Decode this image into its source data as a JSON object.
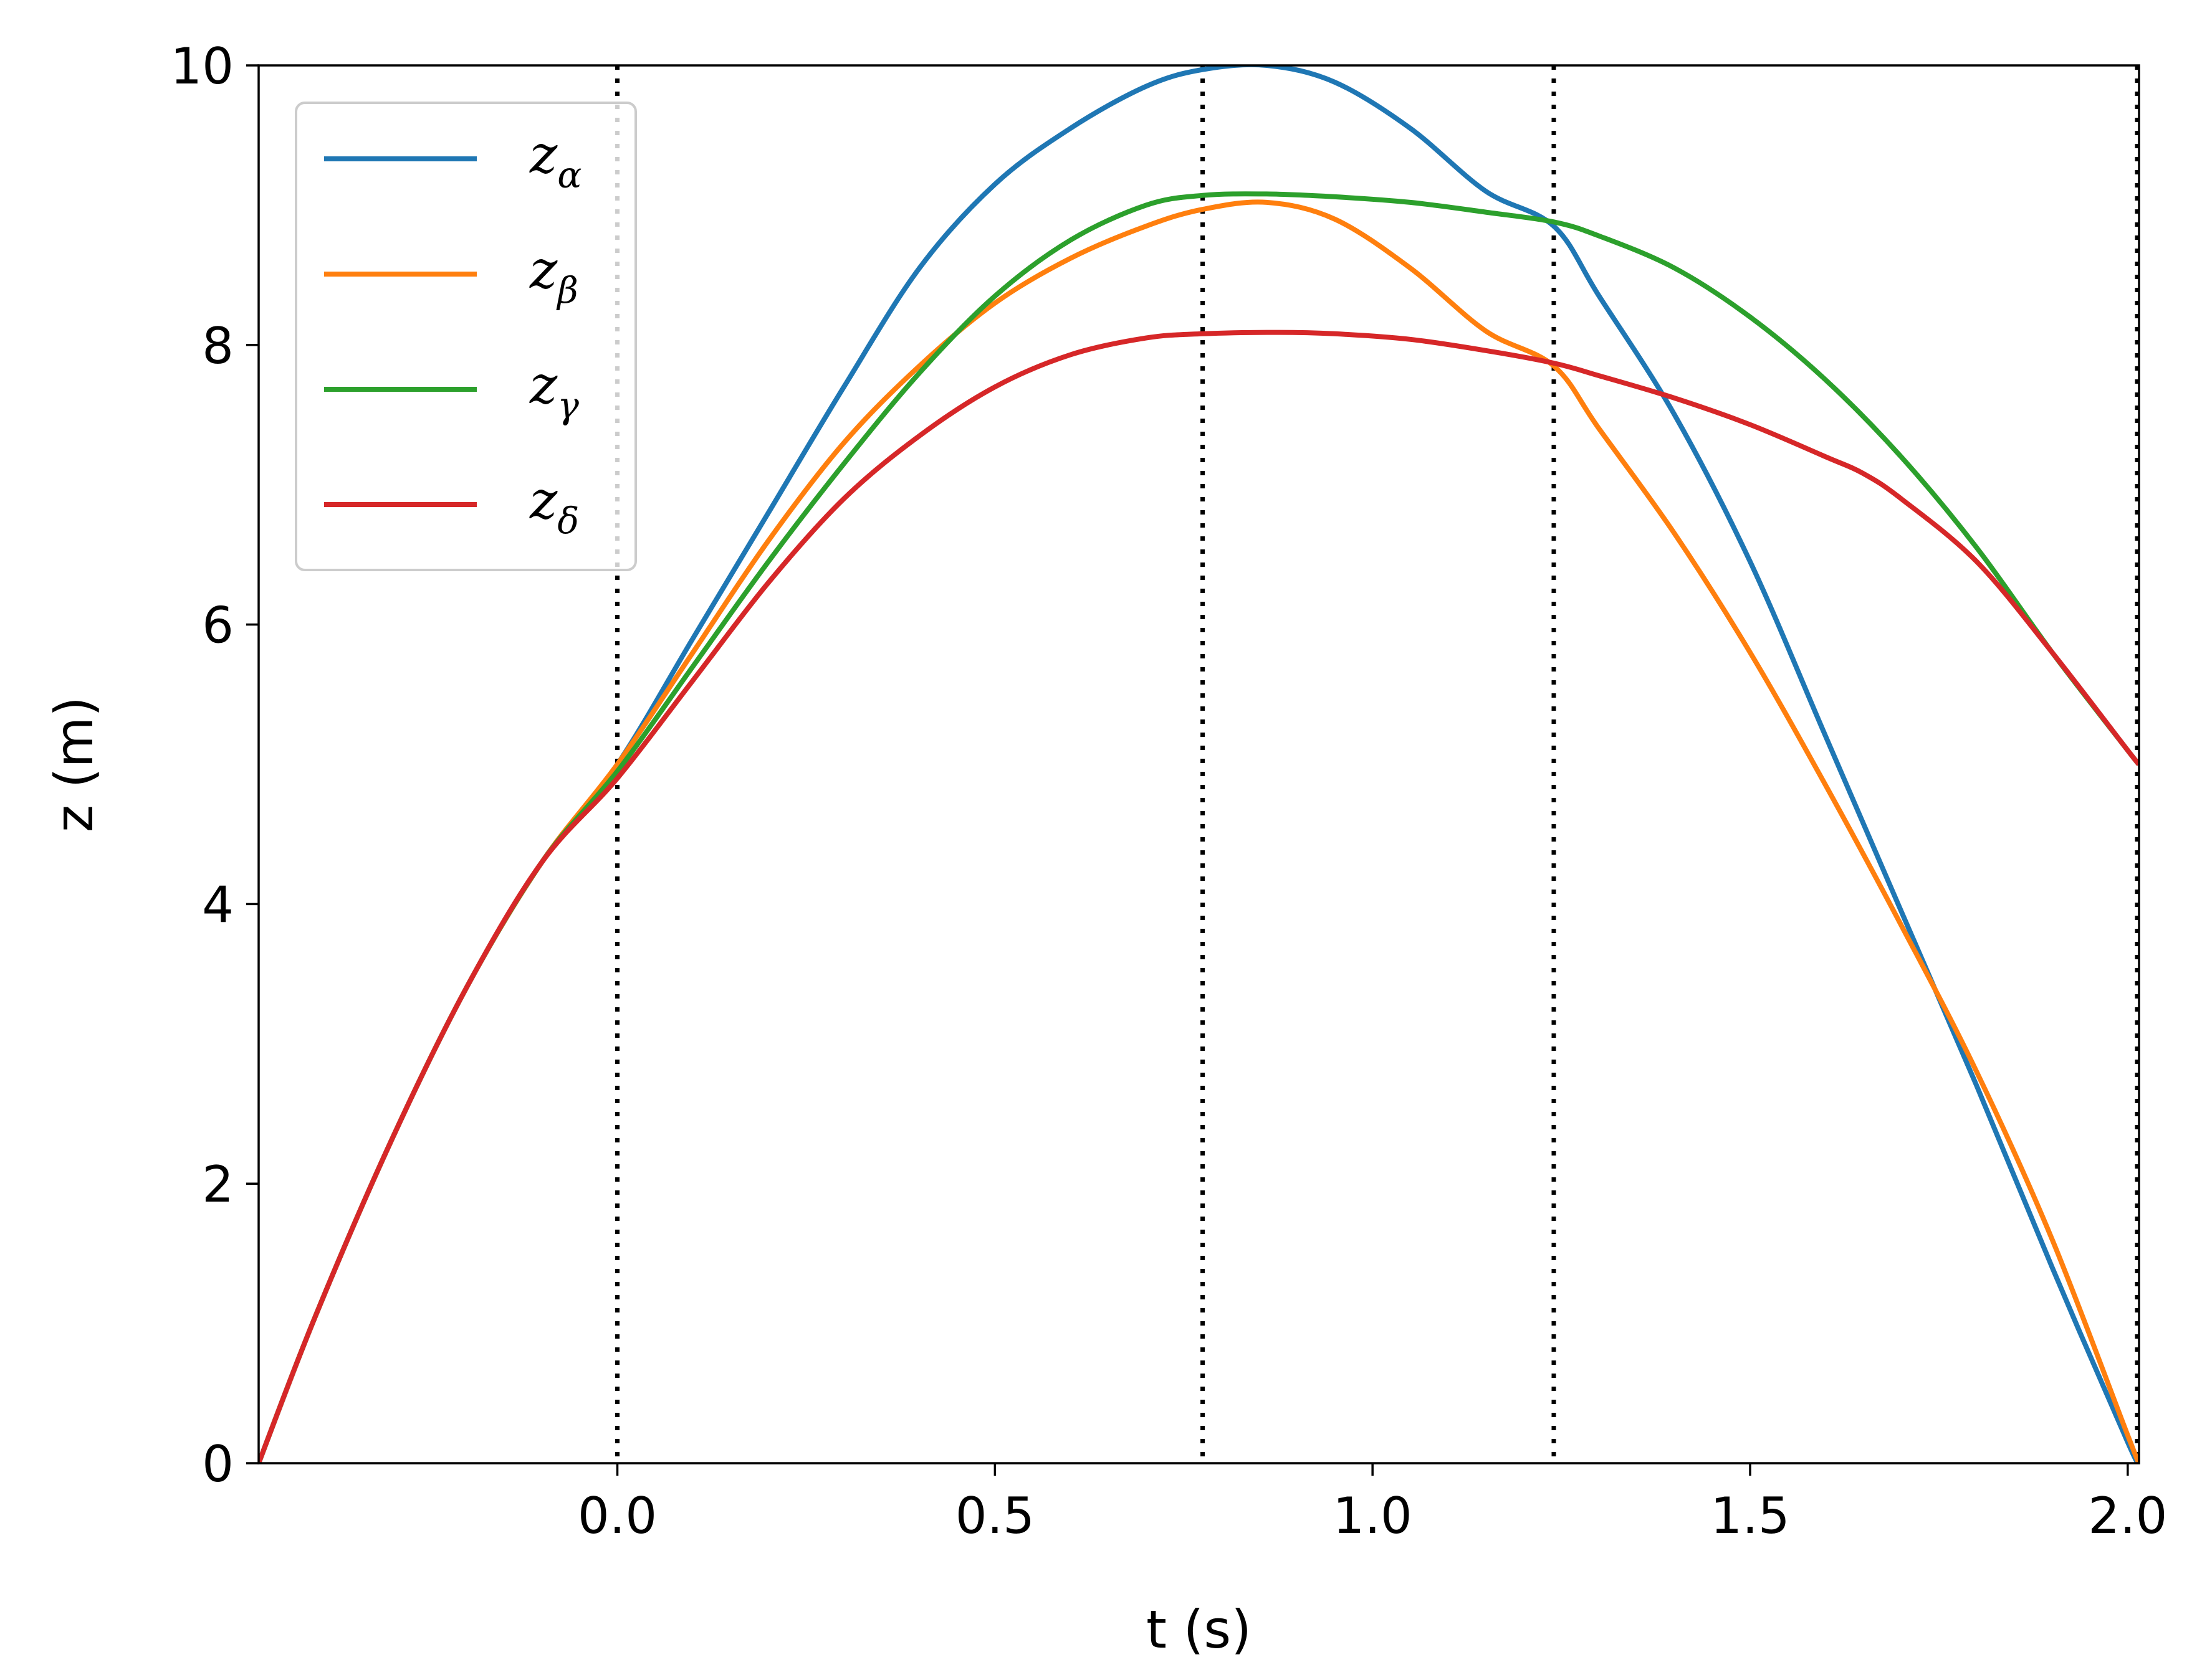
{
  "chart_data": {
    "type": "line",
    "xlabel": "t (s)",
    "ylabel": "z (m)",
    "xlim": [
      -0.475,
      2.015
    ],
    "ylim": [
      0,
      10
    ],
    "xticks": [
      0.0,
      0.5,
      1.0,
      1.5,
      2.0
    ],
    "xtick_labels": [
      "0.0",
      "0.5",
      "1.0",
      "1.5",
      "2.0"
    ],
    "yticks": [
      0,
      2,
      4,
      6,
      8,
      10
    ],
    "ytick_labels": [
      "0",
      "2",
      "4",
      "6",
      "8",
      "10"
    ],
    "grid": false,
    "legend_position": "top-left",
    "vlines": [
      {
        "x": 0.0,
        "style": "dotted",
        "color": "#000000"
      },
      {
        "x": 0.775,
        "style": "dotted",
        "color": "#000000"
      },
      {
        "x": 1.24,
        "style": "dotted",
        "color": "#000000"
      },
      {
        "x": 2.015,
        "style": "dotted",
        "color": "#000000"
      }
    ],
    "series": [
      {
        "name": "z",
        "subscript": "α",
        "color": "#1f77b4",
        "x": [
          -0.475,
          -0.4,
          -0.3,
          -0.2,
          -0.1,
          0.0,
          0.1,
          0.2,
          0.3,
          0.4,
          0.5,
          0.6,
          0.7,
          0.775,
          0.86,
          0.95,
          1.05,
          1.15,
          1.24,
          1.3,
          1.4,
          1.5,
          1.6,
          1.7,
          1.8,
          1.9,
          2.0,
          2.015
        ],
        "values": [
          0.0,
          1.05,
          2.3,
          3.4,
          4.3,
          5.0,
          5.9,
          6.8,
          7.7,
          8.55,
          9.15,
          9.55,
          9.85,
          9.97,
          10.0,
          9.88,
          9.55,
          9.1,
          8.85,
          8.35,
          7.5,
          6.45,
          5.2,
          3.95,
          2.7,
          1.4,
          0.15,
          0.0
        ]
      },
      {
        "name": "z",
        "subscript": "β",
        "color": "#ff7f0e",
        "x": [
          -0.475,
          -0.4,
          -0.3,
          -0.2,
          -0.1,
          0.0,
          0.1,
          0.2,
          0.3,
          0.4,
          0.5,
          0.6,
          0.7,
          0.775,
          0.86,
          0.95,
          1.05,
          1.15,
          1.24,
          1.3,
          1.4,
          1.5,
          1.6,
          1.7,
          1.8,
          1.9,
          2.0,
          2.015
        ],
        "values": [
          0.0,
          1.05,
          2.3,
          3.4,
          4.3,
          5.0,
          5.8,
          6.6,
          7.3,
          7.85,
          8.3,
          8.62,
          8.85,
          8.97,
          9.02,
          8.9,
          8.55,
          8.1,
          7.85,
          7.4,
          6.65,
          5.8,
          4.85,
          3.85,
          2.8,
          1.6,
          0.2,
          0.0
        ]
      },
      {
        "name": "z",
        "subscript": "γ",
        "color": "#2ca02c",
        "x": [
          -0.475,
          -0.4,
          -0.3,
          -0.2,
          -0.1,
          0.0,
          0.1,
          0.2,
          0.3,
          0.4,
          0.5,
          0.6,
          0.7,
          0.775,
          0.86,
          0.95,
          1.05,
          1.15,
          1.24,
          1.3,
          1.4,
          1.5,
          1.6,
          1.7,
          1.8,
          1.9,
          2.0,
          2.015
        ],
        "values": [
          0.0,
          1.05,
          2.3,
          3.4,
          4.3,
          4.95,
          5.7,
          6.45,
          7.15,
          7.8,
          8.35,
          8.75,
          9.0,
          9.07,
          9.08,
          9.06,
          9.02,
          8.95,
          8.88,
          8.78,
          8.55,
          8.2,
          7.75,
          7.2,
          6.55,
          5.8,
          5.1,
          5.0
        ]
      },
      {
        "name": "z",
        "subscript": "δ",
        "color": "#d62728",
        "x": [
          -0.475,
          -0.4,
          -0.3,
          -0.2,
          -0.1,
          0.0,
          0.1,
          0.2,
          0.3,
          0.4,
          0.5,
          0.6,
          0.7,
          0.775,
          0.875,
          0.95,
          1.05,
          1.15,
          1.24,
          1.3,
          1.4,
          1.5,
          1.6,
          1.65,
          1.7,
          1.8,
          1.9,
          2.0,
          2.015
        ],
        "values": [
          0.0,
          1.05,
          2.3,
          3.4,
          4.3,
          4.9,
          5.6,
          6.3,
          6.9,
          7.35,
          7.7,
          7.93,
          8.05,
          8.08,
          8.09,
          8.08,
          8.04,
          7.96,
          7.87,
          7.78,
          7.62,
          7.43,
          7.2,
          7.08,
          6.9,
          6.45,
          5.8,
          5.1,
          5.0
        ]
      }
    ]
  }
}
